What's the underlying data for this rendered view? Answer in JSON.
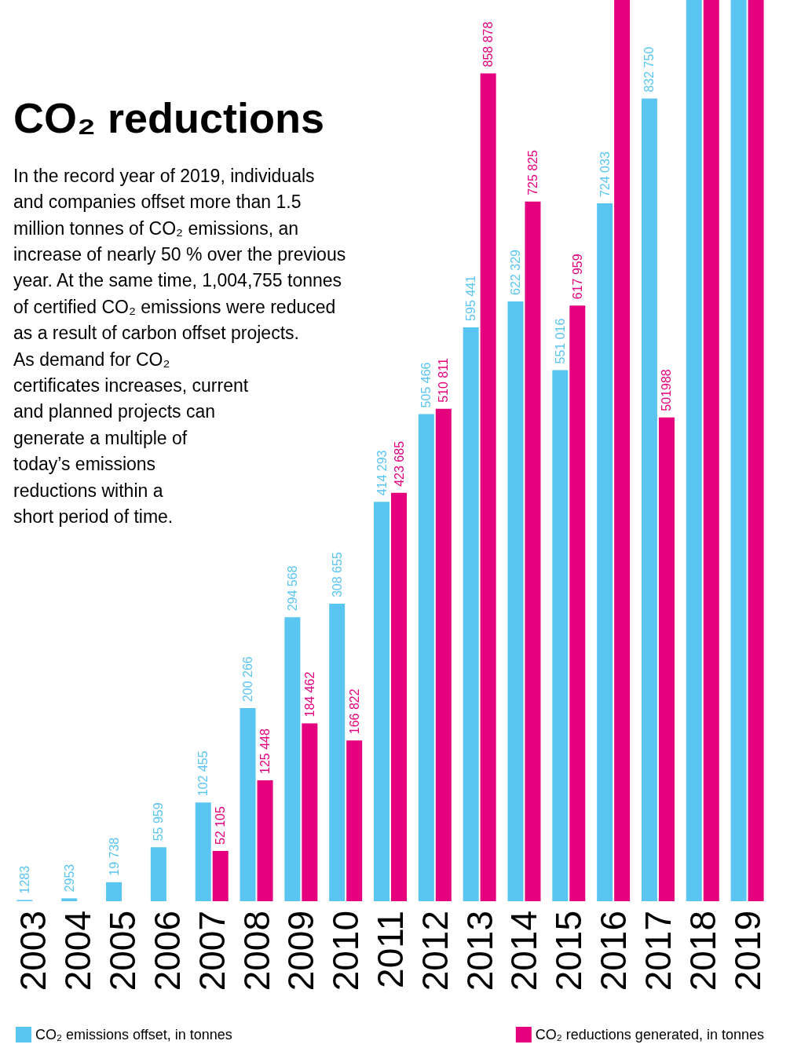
{
  "chart_data": {
    "type": "bar",
    "title": "CO₂ reductions",
    "subtitle": "In the record year of 2019, individuals\nand companies offset more than 1.5\nmillion tonnes of CO₂ emissions, an\nincrease of nearly 50 % over the previous\nyear. At the same time, 1,004,755 tonnes\nof certified CO₂ emissions were reduced\nas a result of carbon offset projects.\nAs demand for CO₂\ncertificates increases, current\nand planned projects can\ngenerate a multiple of\ntoday’s emissions\nreductions within a\nshort period of time.",
    "categories": [
      "2003",
      "2004",
      "2005",
      "2006",
      "2007",
      "2008",
      "2009",
      "2010",
      "2011",
      "2012",
      "2013",
      "2014",
      "2015",
      "2016",
      "2017",
      "2018",
      "2019"
    ],
    "ylim": [
      0,
      935000
    ],
    "legend": "bottom",
    "series": [
      {
        "name": "CO₂ emissions offset, in tonnes",
        "color": "#5bc5f2",
        "values": [
          1283,
          2953,
          19738,
          55959,
          102455,
          200266,
          294568,
          308655,
          414293,
          505466,
          595441,
          622329,
          551016,
          724033,
          832750,
          935000,
          935000
        ],
        "value_labels": [
          "1283",
          "2953",
          "19 738",
          "55 959",
          "102 455",
          "200 266",
          "294 568",
          "308 655",
          "414 293",
          "505 466",
          "595 441",
          "622 329",
          "551 016",
          "724 033",
          "832 750",
          null,
          null
        ]
      },
      {
        "name": "CO₂ reductions generated, in tonnes",
        "color": "#e5007d",
        "values": [
          null,
          null,
          null,
          null,
          52105,
          125448,
          184462,
          166822,
          423685,
          510811,
          858878,
          725825,
          617959,
          935000,
          501988,
          935000,
          935000
        ],
        "value_labels": [
          null,
          null,
          null,
          null,
          "52 105",
          "125 448",
          "184 462",
          "166 822",
          "423 685",
          "510 811",
          "858 878",
          "725 825",
          "617 959",
          null,
          "501988",
          null,
          null
        ]
      }
    ]
  }
}
